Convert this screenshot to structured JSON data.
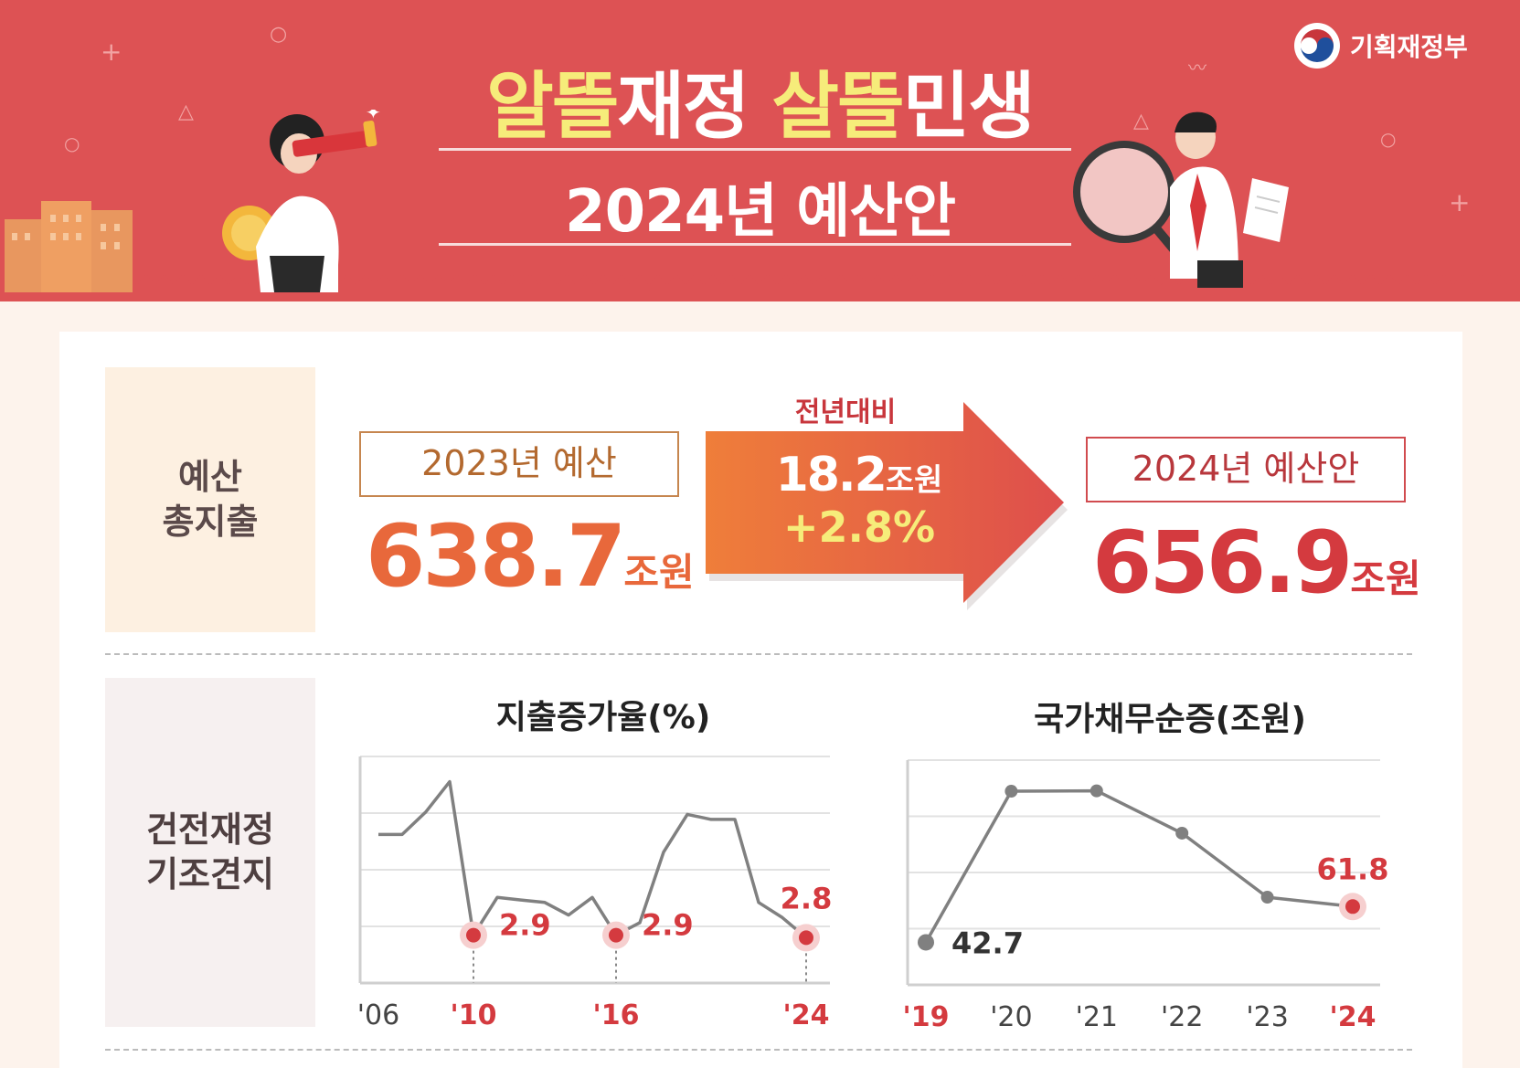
{
  "header": {
    "title_part1": "알뜰",
    "title_part2": "재정 ",
    "title_part3": "살뜰",
    "title_part4": "민생",
    "subtitle": "2024년 예산안",
    "ministry": "기획재정부"
  },
  "colors": {
    "header_bg": "#dd5254",
    "accent_yellow": "#f6ec7a",
    "orange": "#e46d3e",
    "red": "#d43a3f",
    "line_gray": "#808080"
  },
  "budget": {
    "section_label": "예산\n총지출",
    "prev_label": "2023년 예산",
    "prev_value": "638.7",
    "prev_unit": "조원",
    "yoy_label": "전년대비",
    "yoy_amount": "18.2",
    "yoy_unit": "조원",
    "yoy_pct": "+2.8%",
    "next_label": "2024년 예산안",
    "next_value": "656.9",
    "next_unit": "조원"
  },
  "fiscal": {
    "section_label": "건전재정\n기조견지"
  },
  "chart_data": [
    {
      "type": "line",
      "title": "지출증가율(%)",
      "x": [
        2006,
        2007,
        2008,
        2009,
        2010,
        2011,
        2012,
        2013,
        2014,
        2015,
        2016,
        2017,
        2018,
        2019,
        2020,
        2021,
        2022,
        2023,
        2024
      ],
      "y": [
        6.9,
        6.9,
        7.8,
        9.0,
        2.9,
        4.4,
        4.3,
        4.2,
        3.7,
        4.4,
        2.9,
        3.4,
        6.2,
        7.7,
        7.5,
        7.5,
        4.2,
        3.6,
        2.8
      ],
      "xticks": [
        "'06",
        "'10",
        "'16",
        "'24"
      ],
      "highlighted": [
        {
          "x": 2010,
          "label": "2.9"
        },
        {
          "x": 2016,
          "label": "2.9"
        },
        {
          "x": 2024,
          "label": "2.8"
        }
      ],
      "ylim": [
        1,
        10
      ]
    },
    {
      "type": "line",
      "title": "국가채무순증(조원)",
      "x": [
        2019,
        2020,
        2021,
        2022,
        2023,
        2024
      ],
      "y": [
        42.7,
        123.4,
        123.6,
        101.0,
        66.8,
        61.8
      ],
      "xticks": [
        "'19",
        "'20",
        "'21",
        "'22",
        "'23",
        "'24"
      ],
      "highlighted": [
        {
          "x": 2019,
          "label": "42.7"
        },
        {
          "x": 2024,
          "label": "61.8"
        }
      ],
      "ylim": [
        20,
        140
      ]
    }
  ]
}
